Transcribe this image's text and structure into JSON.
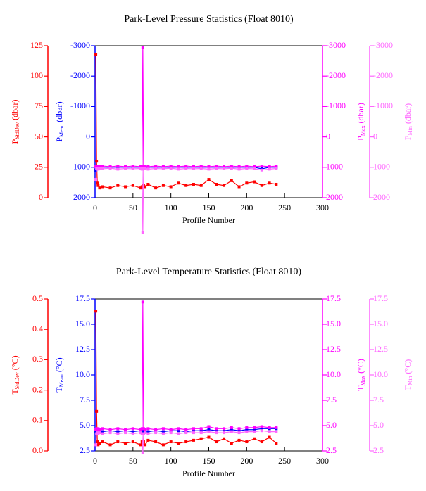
{
  "chart_data": [
    {
      "type": "line",
      "title": "Park-Level Pressure Statistics (Float 8010)",
      "xlabel": "Profile Number",
      "xlim": [
        0,
        300
      ],
      "xticks": [
        0,
        50,
        100,
        150,
        200,
        250,
        300
      ],
      "x": [
        1,
        2,
        3,
        4,
        6,
        10,
        20,
        30,
        40,
        50,
        60,
        62,
        63,
        64,
        66,
        70,
        80,
        90,
        100,
        110,
        120,
        130,
        140,
        150,
        160,
        170,
        180,
        190,
        200,
        210,
        220,
        230,
        239
      ],
      "axes": [
        {
          "color": "#ff0000",
          "lim": [
            0,
            125
          ],
          "ticks": [
            0,
            25,
            50,
            75,
            100,
            125
          ],
          "label": {
            "symbol": "P",
            "subscript": "StdDev",
            "unit": " (dbar)"
          }
        },
        {
          "color": "#0000ff",
          "lim": [
            2000,
            -3000
          ],
          "ticks": [
            2000,
            1000,
            0,
            -1000,
            -2000,
            -3000
          ],
          "label": {
            "symbol": "P",
            "subscript": "Mean",
            "unit": " (dbar)"
          }
        },
        {
          "color": "#ff00ff",
          "lim": [
            2000,
            -3000
          ],
          "ticks": [
            2000,
            1000,
            0,
            -1000,
            -2000,
            -3000
          ],
          "label": {
            "symbol": "P",
            "subscript": "Max",
            "unit": " (dbar)"
          }
        },
        {
          "color": "#ff66ff",
          "lim": [
            2000,
            -3000
          ],
          "ticks": [
            2000,
            1000,
            0,
            -1000,
            -2000,
            -3000
          ],
          "label": {
            "symbol": "P",
            "subscript": "Min",
            "unit": " (dbar)"
          }
        }
      ],
      "series": [
        {
          "axis": 0,
          "color": "#ff0000",
          "values": [
            118,
            30,
            12,
            10,
            8,
            9,
            8,
            10,
            9,
            10,
            8,
            9,
            8,
            10,
            9,
            11,
            8,
            10,
            9,
            12,
            10,
            11,
            10,
            15,
            11,
            10,
            14,
            9,
            12,
            13,
            10,
            12,
            11
          ]
        },
        {
          "axis": 1,
          "color": "#0000ff",
          "values": [
            1100,
            1000,
            1000,
            1000,
            1000,
            1000,
            1000,
            1000,
            1000,
            1000,
            1000,
            1000,
            1000,
            1000,
            1000,
            1000,
            1000,
            1000,
            1000,
            1000,
            1000,
            1000,
            1000,
            1000,
            1000,
            1000,
            1000,
            1000,
            1000,
            1000,
            1050,
            1000,
            1000
          ]
        },
        {
          "axis": 2,
          "color": "#ff00ff",
          "values": [
            980,
            960,
            980,
            960,
            980,
            960,
            980,
            960,
            980,
            960,
            980,
            960,
            -2950,
            980,
            960,
            980,
            960,
            980,
            960,
            980,
            960,
            980,
            960,
            980,
            960,
            980,
            960,
            980,
            960,
            980,
            960,
            980,
            960
          ]
        },
        {
          "axis": 3,
          "color": "#ff66ff",
          "values": [
            1400,
            1050,
            1040,
            1060,
            1040,
            1050,
            1030,
            1060,
            1040,
            1050,
            1040,
            1060,
            3150,
            1050,
            1040,
            1060,
            1040,
            1050,
            1030,
            1060,
            1040,
            1050,
            1040,
            1060,
            1040,
            1050,
            1030,
            1060,
            1040,
            1050,
            1090,
            1060,
            1040
          ]
        }
      ]
    },
    {
      "type": "line",
      "title": "Park-Level Temperature Statistics (Float 8010)",
      "xlabel": "Profile Number",
      "xlim": [
        0,
        300
      ],
      "xticks": [
        0,
        50,
        100,
        150,
        200,
        250,
        300
      ],
      "x": [
        1,
        2,
        3,
        4,
        6,
        10,
        20,
        30,
        40,
        50,
        60,
        62,
        63,
        64,
        66,
        70,
        80,
        90,
        100,
        110,
        120,
        130,
        140,
        150,
        160,
        170,
        180,
        190,
        200,
        210,
        220,
        230,
        239
      ],
      "axes": [
        {
          "color": "#ff0000",
          "lim": [
            0,
            0.5
          ],
          "ticks": [
            {
              "value": 0,
              "label": "0.0"
            },
            0.1,
            0.2,
            0.3,
            0.4,
            0.5
          ],
          "label": {
            "symbol": "T",
            "subscript": "StdDev",
            "unit": " (°C)"
          }
        },
        {
          "color": "#0000ff",
          "lim": [
            2.5,
            17.5
          ],
          "ticks": [
            2.5,
            {
              "value": 5,
              "label": "5.0"
            },
            7.5,
            {
              "value": 10,
              "label": "10.0"
            },
            12.5,
            {
              "value": 15,
              "label": "15.0"
            },
            17.5
          ],
          "label": {
            "symbol": "T",
            "subscript": "Mean",
            "unit": " (°C)"
          }
        },
        {
          "color": "#ff00ff",
          "lim": [
            2.5,
            17.5
          ],
          "ticks": [
            2.5,
            {
              "value": 5,
              "label": "5.0"
            },
            7.5,
            {
              "value": 10,
              "label": "10.0"
            },
            12.5,
            {
              "value": 15,
              "label": "15.0"
            },
            17.5
          ],
          "label": {
            "symbol": "T",
            "subscript": "Max",
            "unit": " (°C)"
          }
        },
        {
          "color": "#ff66ff",
          "lim": [
            2.5,
            17.5
          ],
          "ticks": [
            2.5,
            {
              "value": 5,
              "label": "5.0"
            },
            7.5,
            {
              "value": 10,
              "label": "10.0"
            },
            12.5,
            {
              "value": 15,
              "label": "15.0"
            },
            17.5
          ],
          "label": {
            "symbol": "T",
            "subscript": "Min",
            "unit": " (°C)"
          }
        }
      ],
      "series": [
        {
          "axis": 0,
          "color": "#ff0000",
          "values": [
            0.46,
            0.13,
            0.03,
            0.02,
            0.025,
            0.03,
            0.02,
            0.03,
            0.025,
            0.03,
            0.02,
            0.03,
            0.025,
            0.03,
            0.02,
            0.035,
            0.03,
            0.02,
            0.03,
            0.025,
            0.03,
            0.035,
            0.04,
            0.045,
            0.03,
            0.04,
            0.025,
            0.035,
            0.03,
            0.04,
            0.03,
            0.045,
            0.025
          ]
        },
        {
          "axis": 1,
          "color": "#0000ff",
          "values": [
            4.4,
            4.5,
            4.5,
            4.4,
            4.5,
            4.4,
            4.5,
            4.4,
            4.5,
            4.4,
            4.5,
            4.5,
            4.5,
            4.4,
            4.5,
            4.4,
            4.5,
            4.4,
            4.5,
            4.5,
            4.4,
            4.5,
            4.5,
            4.6,
            4.5,
            4.5,
            4.6,
            4.5,
            4.6,
            4.6,
            4.7,
            4.7,
            4.7
          ]
        },
        {
          "axis": 2,
          "color": "#ff00ff",
          "values": [
            4.6,
            4.7,
            4.6,
            4.7,
            4.6,
            4.7,
            4.6,
            4.7,
            4.6,
            4.7,
            4.6,
            4.7,
            17.2,
            4.7,
            4.6,
            4.7,
            4.6,
            4.7,
            4.6,
            4.7,
            4.6,
            4.7,
            4.7,
            4.9,
            4.7,
            4.7,
            4.8,
            4.7,
            4.8,
            4.8,
            4.9,
            4.8,
            4.8
          ]
        },
        {
          "axis": 3,
          "color": "#ff66ff",
          "values": [
            3.1,
            4.2,
            4.3,
            4.2,
            4.3,
            4.2,
            4.3,
            4.2,
            4.3,
            4.2,
            4.3,
            4.2,
            2.3,
            4.2,
            4.3,
            4.2,
            4.3,
            4.2,
            4.3,
            4.2,
            4.3,
            4.3,
            4.3,
            4.4,
            4.3,
            4.3,
            4.4,
            4.3,
            4.4,
            4.4,
            4.5,
            4.4,
            4.4
          ]
        }
      ]
    }
  ]
}
